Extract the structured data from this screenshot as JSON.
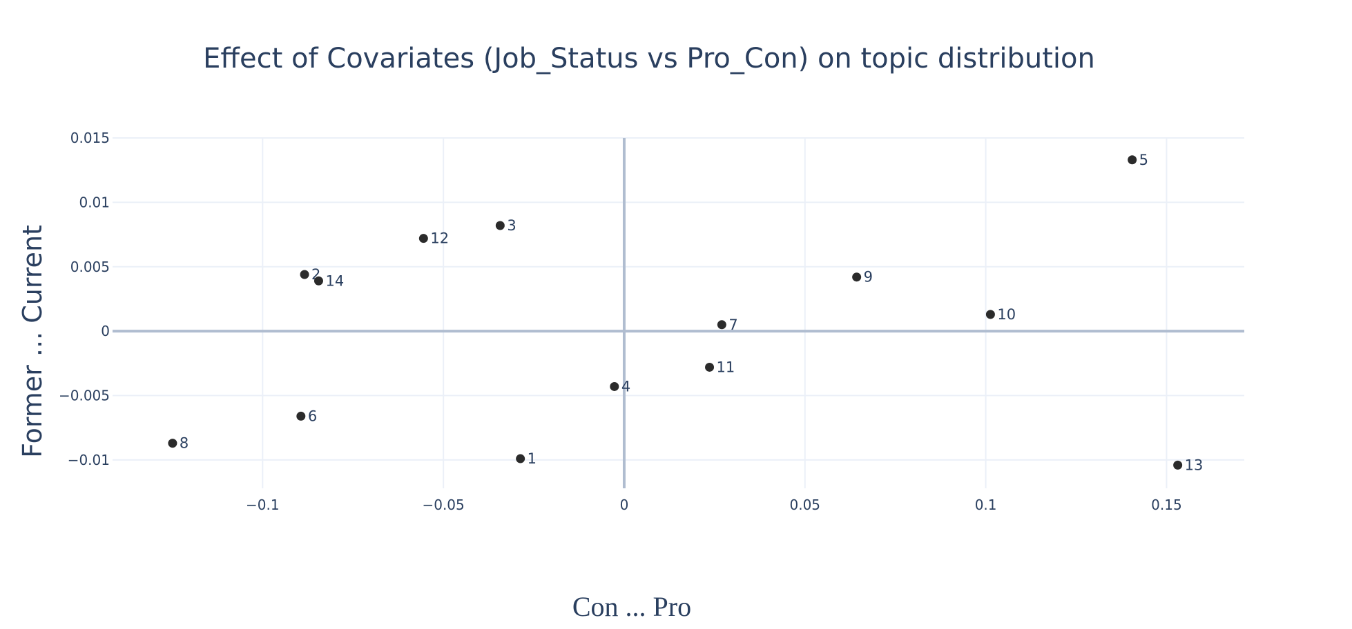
{
  "chart_data": {
    "type": "scatter",
    "title": "Effect of Covariates (Job_Status vs Pro_Con) on topic distribution",
    "xlabel": "Con ... Pro",
    "ylabel": "Former ... Current",
    "xlim": [
      -0.1415,
      0.1715
    ],
    "ylim": [
      -0.0122,
      0.015
    ],
    "x_ticks": [
      {
        "value": -0.1,
        "label": "−0.1"
      },
      {
        "value": -0.05,
        "label": "−0.05"
      },
      {
        "value": 0,
        "label": "0"
      },
      {
        "value": 0.05,
        "label": "0.05"
      },
      {
        "value": 0.1,
        "label": "0.1"
      },
      {
        "value": 0.15,
        "label": "0.15"
      }
    ],
    "y_ticks": [
      {
        "value": 0.015,
        "label": "0.015"
      },
      {
        "value": 0.01,
        "label": "0.01"
      },
      {
        "value": 0.005,
        "label": "0.005"
      },
      {
        "value": 0,
        "label": "0"
      },
      {
        "value": -0.005,
        "label": "−0.005"
      },
      {
        "value": -0.01,
        "label": "−0.01"
      }
    ],
    "grid": true,
    "legend": "none",
    "marker_color": "#2b2b2b",
    "points": [
      {
        "label": "1",
        "x": -0.0287,
        "y": -0.0099
      },
      {
        "label": "2",
        "x": -0.0884,
        "y": 0.0044
      },
      {
        "label": "3",
        "x": -0.0343,
        "y": 0.0082
      },
      {
        "label": "4",
        "x": -0.0027,
        "y": -0.0043
      },
      {
        "label": "5",
        "x": 0.1405,
        "y": 0.0133
      },
      {
        "label": "6",
        "x": -0.0894,
        "y": -0.0066
      },
      {
        "label": "7",
        "x": 0.027,
        "y": 0.0005
      },
      {
        "label": "8",
        "x": -0.1249,
        "y": -0.0087
      },
      {
        "label": "9",
        "x": 0.0643,
        "y": 0.0042
      },
      {
        "label": "10",
        "x": 0.1013,
        "y": 0.0013
      },
      {
        "label": "11",
        "x": 0.0236,
        "y": -0.0028
      },
      {
        "label": "12",
        "x": -0.0555,
        "y": 0.0072
      },
      {
        "label": "13",
        "x": 0.1531,
        "y": -0.0104
      },
      {
        "label": "14",
        "x": -0.0845,
        "y": 0.0039
      }
    ]
  }
}
